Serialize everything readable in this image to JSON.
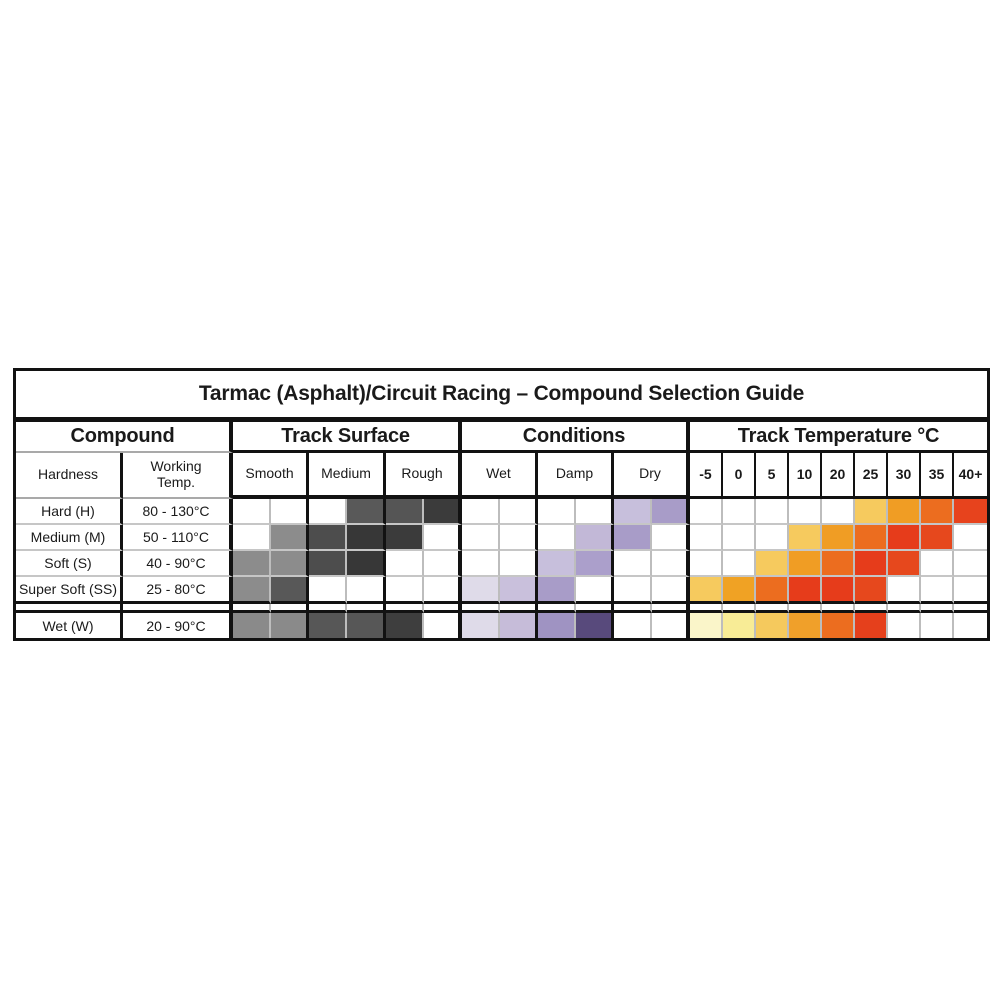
{
  "chart_data": {
    "type": "heatmap",
    "title": "Tarmac (Asphalt)/Circuit Racing – Compound Selection Guide",
    "legend_position": "none",
    "grid": "on",
    "column_groups": [
      {
        "label": "Compound",
        "columns": [
          "Hardness",
          "Working Temp."
        ]
      },
      {
        "label": "Track Surface",
        "columns": [
          "Smooth",
          "Medium",
          "Rough"
        ],
        "subcells_per_column": 2
      },
      {
        "label": "Conditions",
        "columns": [
          "Wet",
          "Damp",
          "Dry"
        ],
        "subcells_per_column": 2
      },
      {
        "label": "Track Temperature °C",
        "columns": [
          "-5",
          "0",
          "5",
          "10",
          "20",
          "25",
          "30",
          "35",
          "40+"
        ]
      }
    ],
    "rows": [
      {
        "hardness": "Hard (H)",
        "working_temp": "80 - 130°C",
        "track_surface_cells": [
          null,
          null,
          null,
          "#595959",
          "#555555",
          "#3B3B3B"
        ],
        "conditions_cells": [
          null,
          null,
          null,
          null,
          "#C7BFDC",
          "#A89CC8"
        ],
        "track_temperature_cells": [
          null,
          null,
          null,
          null,
          null,
          "#F6CA5E",
          "#F09D24",
          "#EC6D1F",
          "#E7431D"
        ]
      },
      {
        "hardness": "Medium (M)",
        "working_temp": "50 - 110°C",
        "track_surface_cells": [
          null,
          "#8C8C8C",
          "#4D4D4D",
          "#373737",
          "#3B3B3B",
          null
        ],
        "conditions_cells": [
          null,
          null,
          null,
          "#C2B8D7",
          "#A89CC8",
          null
        ],
        "track_temperature_cells": [
          null,
          null,
          null,
          "#F6CA5E",
          "#F09D24",
          "#EC6D1F",
          "#E63C1B",
          "#E6481D",
          null
        ]
      },
      {
        "hardness": "Soft (S)",
        "working_temp": "40 - 90°C",
        "track_surface_cells": [
          "#8C8C8C",
          "#8C8C8C",
          "#4D4D4D",
          "#373737",
          null,
          null
        ],
        "conditions_cells": [
          null,
          null,
          "#C7BFDC",
          "#AB9FCB",
          null,
          null
        ],
        "track_temperature_cells": [
          null,
          null,
          "#F6CA5E",
          "#F09D24",
          "#EC6D1F",
          "#E63C1B",
          "#E6481D",
          null,
          null
        ]
      },
      {
        "hardness": "Super Soft (SS)",
        "working_temp": "25 - 80°C",
        "track_surface_cells": [
          "#8C8C8C",
          "#585858",
          null,
          null,
          null,
          null
        ],
        "conditions_cells": [
          "#DFDBE9",
          "#C9C0DC",
          "#A89CC8",
          null,
          null,
          null
        ],
        "track_temperature_cells": [
          "#F6CA5E",
          "#F0A224",
          "#EC6D1F",
          "#E63C1B",
          "#E63C1B",
          "#E6481D",
          null,
          null,
          null
        ]
      }
    ],
    "wet_rows": [
      {
        "hardness": "Wet (W)",
        "working_temp": "20 - 90°C",
        "track_surface_cells": [
          "#8A8A8A",
          "#8A8A8A",
          "#575757",
          "#575757",
          "#3E3E3E",
          null
        ],
        "conditions_cells": [
          "#DFDBE9",
          "#C6BCD9",
          "#9F93C2",
          "#584A7C",
          null,
          null
        ],
        "track_temperature_cells": [
          "#FAF5C9",
          "#F8EC96",
          "#F5C95D",
          "#F0A02A",
          "#EC6D1F",
          "#E5401C",
          null,
          null,
          null
        ]
      }
    ],
    "colors": {
      "heat_yellow": "#F6CA5E",
      "heat_orange": "#F09D24",
      "heat_deep_orange": "#EC6D1F",
      "heat_red": "#E63C1B",
      "wet_pale_cream": "#FAF5C9",
      "wet_pale_yellow": "#F8EC96",
      "purple_pale": "#DFDBE9",
      "purple_light": "#C7BFDC",
      "purple_medium": "#A89CC8",
      "purple_dark": "#584A7C",
      "gray_light": "#8C8C8C",
      "gray_medium": "#555555",
      "gray_dark": "#3B3B3B"
    }
  }
}
